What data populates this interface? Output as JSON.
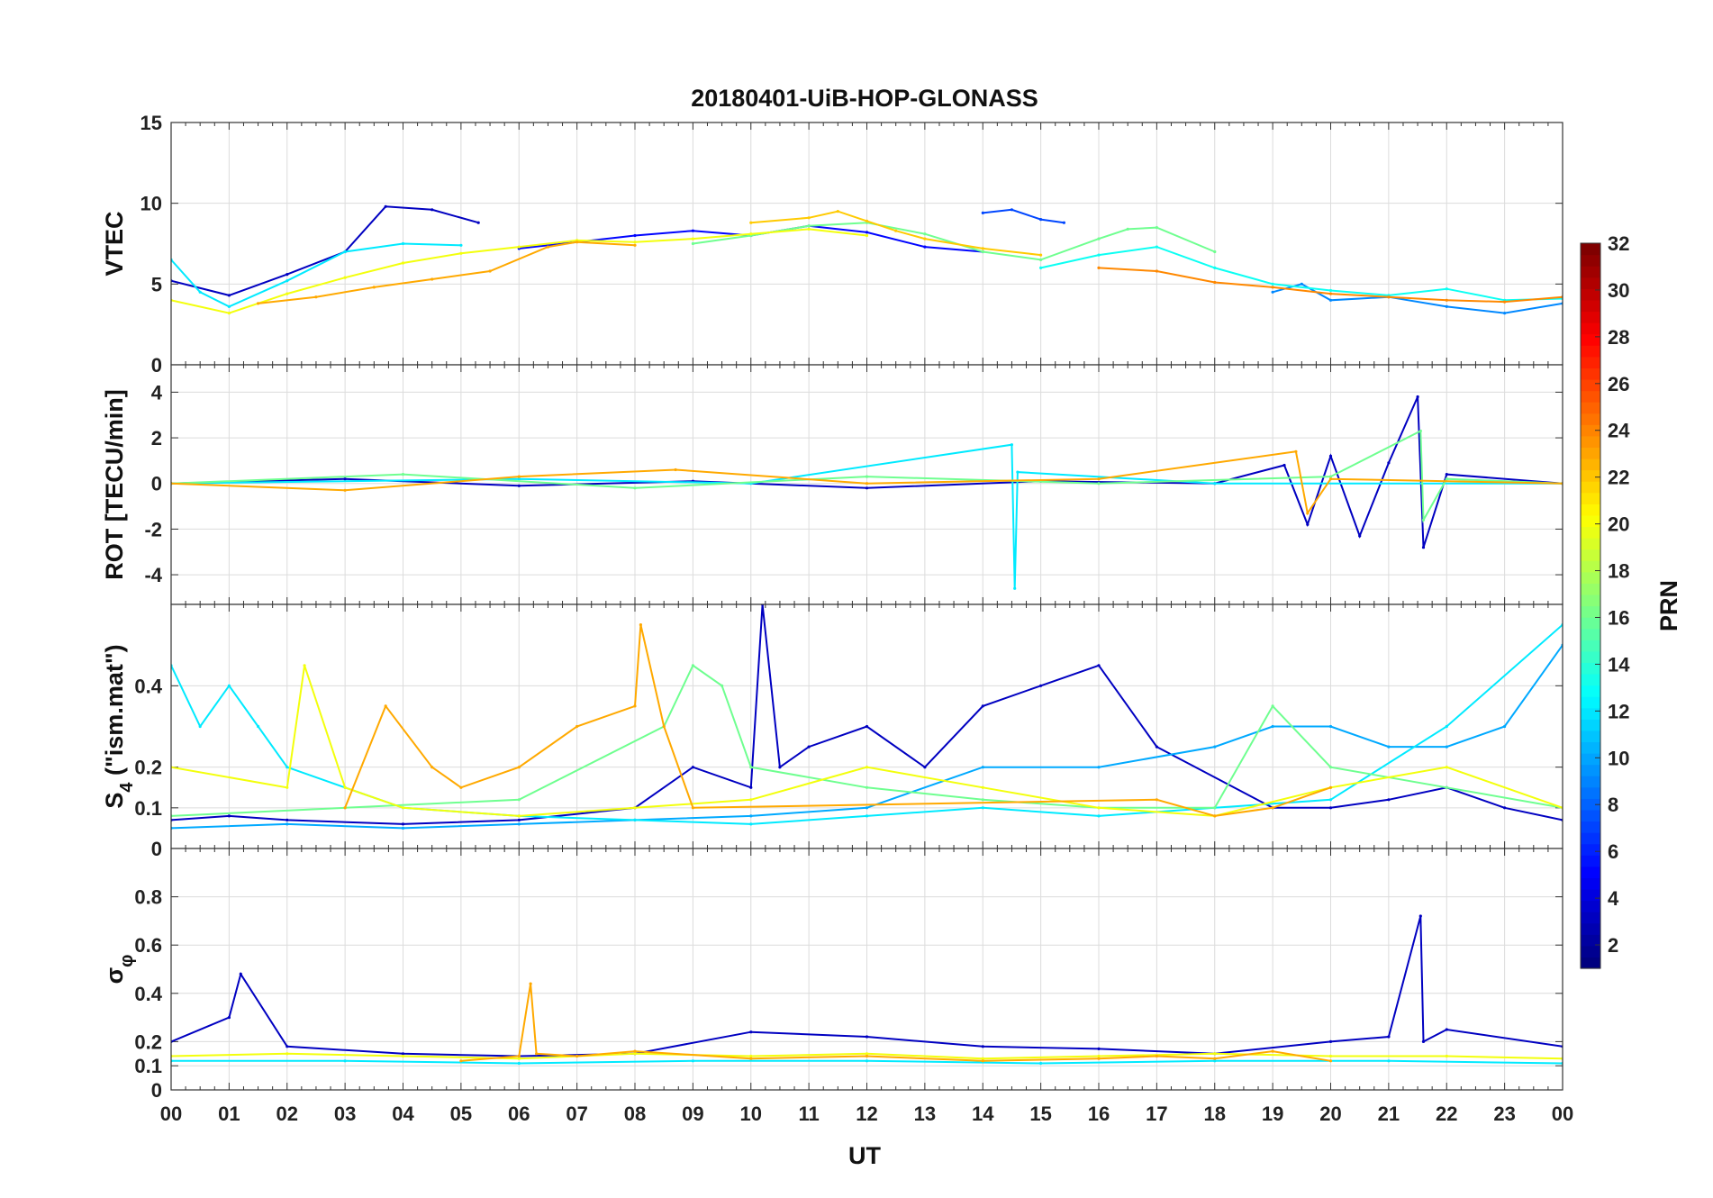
{
  "chart_data": {
    "type": "line",
    "title": "20180401-UiB-HOP-GLONASS",
    "xlabel": "UT",
    "x_ticks": [
      "00",
      "01",
      "02",
      "03",
      "04",
      "05",
      "06",
      "07",
      "08",
      "09",
      "10",
      "11",
      "12",
      "13",
      "14",
      "15",
      "16",
      "17",
      "18",
      "19",
      "20",
      "21",
      "22",
      "23",
      "00"
    ],
    "xlim_hours": [
      0,
      24
    ],
    "grid": true,
    "panels": [
      {
        "id": "vtec",
        "ylabel": "VTEC",
        "ylim": [
          0,
          15
        ],
        "yticks": [
          "0",
          "5",
          "10",
          "15"
        ],
        "ytick_values": [
          0,
          5,
          10,
          15
        ],
        "series": [
          {
            "name": "PRN 3",
            "hours": [
              0,
              1,
              2,
              3,
              3.7,
              4.5,
              5.3
            ],
            "values": [
              5.2,
              4.3,
              5.6,
              7.0,
              9.8,
              9.6,
              8.8
            ]
          },
          {
            "name": "PRN 5",
            "hours": [
              6,
              8,
              9,
              10,
              11,
              12,
              13,
              14
            ],
            "values": [
              7.2,
              8.0,
              8.3,
              8.0,
              8.6,
              8.2,
              7.3,
              7.0
            ]
          },
          {
            "name": "PRN 7",
            "hours": [
              14,
              14.5,
              15,
              15.4
            ],
            "values": [
              9.4,
              9.6,
              9.0,
              8.8
            ]
          },
          {
            "name": "PRN 9",
            "hours": [
              19,
              19.5,
              20,
              21,
              22,
              23,
              24
            ],
            "values": [
              4.5,
              5.0,
              4.0,
              4.2,
              3.6,
              3.2,
              3.8
            ]
          },
          {
            "name": "PRN 12",
            "hours": [
              0,
              0.5,
              1,
              2,
              3,
              4,
              5
            ],
            "values": [
              6.5,
              4.5,
              3.6,
              5.2,
              7.0,
              7.5,
              7.4
            ]
          },
          {
            "name": "PRN 13",
            "hours": [
              15,
              16,
              17,
              18,
              19,
              20,
              21,
              22,
              23,
              24
            ],
            "values": [
              6.0,
              6.8,
              7.3,
              6.0,
              5.0,
              4.6,
              4.3,
              4.7,
              4.0,
              4.1
            ]
          },
          {
            "name": "PRN 16",
            "hours": [
              9,
              10,
              11,
              12,
              13,
              14,
              15,
              16,
              16.5,
              17,
              18
            ],
            "values": [
              7.5,
              8.0,
              8.6,
              8.8,
              8.1,
              7.0,
              6.5,
              7.8,
              8.4,
              8.5,
              7.0
            ]
          },
          {
            "name": "PRN 20",
            "hours": [
              0,
              1,
              2,
              3,
              4,
              5,
              6,
              7,
              8,
              9,
              10,
              11,
              12
            ],
            "values": [
              4.0,
              3.2,
              4.4,
              5.4,
              6.3,
              6.9,
              7.3,
              7.7,
              7.6,
              7.8,
              8.1,
              8.4,
              8.0
            ]
          },
          {
            "name": "PRN 22",
            "hours": [
              10,
              11,
              11.5,
              12,
              12.5,
              13,
              14,
              15
            ],
            "values": [
              8.8,
              9.1,
              9.5,
              8.9,
              8.3,
              7.8,
              7.2,
              6.8
            ]
          },
          {
            "name": "PRN 23",
            "hours": [
              1.5,
              2.5,
              3.5,
              4.5,
              5.5,
              6.5,
              7,
              8
            ],
            "values": [
              3.8,
              4.2,
              4.8,
              5.3,
              5.8,
              7.3,
              7.6,
              7.4
            ]
          },
          {
            "name": "PRN 24",
            "hours": [
              16,
              17,
              18,
              19,
              20,
              21,
              22,
              23,
              24
            ],
            "values": [
              6.0,
              5.8,
              5.1,
              4.8,
              4.4,
              4.2,
              4.0,
              3.9,
              4.2
            ]
          }
        ]
      },
      {
        "id": "rot",
        "ylabel": "ROT [TECU/min]",
        "ylim": [
          -5.3,
          5.2
        ],
        "yticks": [
          "-4",
          "-2",
          "0",
          "2",
          "4"
        ],
        "ytick_values": [
          -4,
          -2,
          0,
          2,
          4
        ],
        "series": [
          {
            "name": "PRN 3",
            "hours": [
              0,
              3,
              6,
              9,
              12,
              15,
              18,
              19.2,
              19.6,
              20,
              20.5,
              21,
              21.5,
              21.6,
              22,
              24
            ],
            "values": [
              0,
              0.2,
              -0.1,
              0.1,
              -0.2,
              0.1,
              0,
              0.8,
              -1.8,
              1.2,
              -2.3,
              0.9,
              3.8,
              -2.8,
              0.4,
              0
            ]
          },
          {
            "name": "PRN 12",
            "hours": [
              0,
              6,
              10,
              14.5,
              14.55,
              14.6,
              18,
              24
            ],
            "values": [
              0,
              0.2,
              0,
              1.7,
              -4.6,
              0.5,
              0,
              0
            ]
          },
          {
            "name": "PRN 16",
            "hours": [
              0,
              4,
              8,
              12,
              16,
              20,
              21.55,
              21.6,
              22,
              24
            ],
            "values": [
              0,
              0.4,
              -0.2,
              0.3,
              0,
              0.3,
              2.3,
              -1.6,
              0.2,
              0
            ]
          },
          {
            "name": "PRN 23",
            "hours": [
              0,
              3,
              6,
              8.7,
              12,
              16,
              19.4,
              19.6,
              20,
              24
            ],
            "values": [
              0,
              -0.3,
              0.3,
              0.6,
              0,
              0.2,
              1.4,
              -1.3,
              0.2,
              0
            ]
          }
        ]
      },
      {
        "id": "s4",
        "ylabel": "S4 (\"ism.mat\")",
        "ylabel_base": "S",
        "ylabel_sub": "4",
        "ylabel_rest": " (\"ism.mat\")",
        "ylim": [
          0,
          0.6
        ],
        "yticks": [
          "0",
          "0.1",
          "0.2",
          "0.4"
        ],
        "ytick_values": [
          0,
          0.1,
          0.2,
          0.4
        ],
        "series": [
          {
            "name": "PRN 3",
            "hours": [
              0,
              1,
              2,
              4,
              6,
              8,
              9,
              10,
              10.2,
              10.5,
              11,
              12,
              13,
              14,
              15,
              16,
              17,
              19,
              20,
              21,
              22,
              23,
              24
            ],
            "values": [
              0.07,
              0.08,
              0.07,
              0.06,
              0.07,
              0.1,
              0.2,
              0.15,
              0.6,
              0.2,
              0.25,
              0.3,
              0.2,
              0.35,
              0.4,
              0.45,
              0.25,
              0.1,
              0.1,
              0.12,
              0.15,
              0.1,
              0.07
            ]
          },
          {
            "name": "PRN 10",
            "hours": [
              0,
              2,
              4,
              6,
              8,
              10,
              12,
              14,
              16,
              18,
              19,
              20,
              21,
              22,
              23,
              24
            ],
            "values": [
              0.05,
              0.06,
              0.05,
              0.06,
              0.07,
              0.08,
              0.1,
              0.2,
              0.2,
              0.25,
              0.3,
              0.3,
              0.25,
              0.25,
              0.3,
              0.5
            ]
          },
          {
            "name": "PRN 12",
            "hours": [
              0,
              0.5,
              1,
              1.5,
              2,
              3,
              4,
              6,
              8,
              10,
              12,
              14,
              16,
              18,
              20,
              22,
              24
            ],
            "values": [
              0.45,
              0.3,
              0.4,
              0.3,
              0.2,
              0.15,
              0.1,
              0.08,
              0.07,
              0.06,
              0.08,
              0.1,
              0.08,
              0.1,
              0.12,
              0.3,
              0.55
            ]
          },
          {
            "name": "PRN 16",
            "hours": [
              0,
              3,
              6,
              8.5,
              9,
              9.5,
              10,
              12,
              14,
              16,
              18,
              19,
              20,
              22,
              24
            ],
            "values": [
              0.08,
              0.1,
              0.12,
              0.3,
              0.45,
              0.4,
              0.2,
              0.15,
              0.12,
              0.1,
              0.1,
              0.35,
              0.2,
              0.15,
              0.1
            ]
          },
          {
            "name": "PRN 20",
            "hours": [
              0,
              2,
              2.3,
              3,
              4,
              6,
              8,
              10,
              12,
              14,
              16,
              18,
              20,
              22,
              24
            ],
            "values": [
              0.2,
              0.15,
              0.45,
              0.15,
              0.1,
              0.08,
              0.1,
              0.12,
              0.2,
              0.15,
              0.1,
              0.08,
              0.15,
              0.2,
              0.1
            ]
          },
          {
            "name": "PRN 23",
            "hours": [
              3,
              3.7,
              4.5,
              5,
              6,
              7,
              8,
              8.1,
              8.5,
              9,
              17,
              18,
              19,
              20
            ],
            "values": [
              0.1,
              0.35,
              0.2,
              0.15,
              0.2,
              0.3,
              0.35,
              0.55,
              0.3,
              0.1,
              0.12,
              0.08,
              0.1,
              0.15
            ]
          }
        ]
      },
      {
        "id": "sigma",
        "ylabel": "σφ",
        "ylabel_base": "σ",
        "ylabel_sub": "φ",
        "ylim": [
          0,
          1.0
        ],
        "yticks": [
          "0",
          "0.1",
          "0.2",
          "0.4",
          "0.6",
          "0.8"
        ],
        "ytick_values": [
          0,
          0.1,
          0.2,
          0.4,
          0.6,
          0.8
        ],
        "series": [
          {
            "name": "PRN 3",
            "hours": [
              0,
              1,
              1.2,
              2,
              4,
              6,
              8,
              10,
              12,
              14,
              16,
              18,
              20,
              21,
              21.55,
              21.6,
              22,
              24
            ],
            "values": [
              0.2,
              0.3,
              0.48,
              0.18,
              0.15,
              0.14,
              0.15,
              0.24,
              0.22,
              0.18,
              0.17,
              0.15,
              0.2,
              0.22,
              0.72,
              0.2,
              0.25,
              0.18
            ]
          },
          {
            "name": "PRN 12",
            "hours": [
              0,
              3,
              6,
              9,
              12,
              15,
              18,
              21,
              24
            ],
            "values": [
              0.12,
              0.12,
              0.11,
              0.12,
              0.12,
              0.11,
              0.12,
              0.12,
              0.11
            ]
          },
          {
            "name": "PRN 20",
            "hours": [
              0,
              2,
              4,
              6,
              8,
              10,
              12,
              14,
              16,
              18,
              20,
              22,
              24
            ],
            "values": [
              0.14,
              0.15,
              0.14,
              0.13,
              0.15,
              0.14,
              0.15,
              0.13,
              0.14,
              0.15,
              0.14,
              0.14,
              0.13
            ]
          },
          {
            "name": "PRN 23",
            "hours": [
              5,
              6,
              6.2,
              6.3,
              7,
              8,
              10,
              12,
              14,
              16,
              17,
              18,
              19,
              20
            ],
            "values": [
              0.12,
              0.14,
              0.44,
              0.15,
              0.14,
              0.16,
              0.13,
              0.14,
              0.12,
              0.13,
              0.14,
              0.13,
              0.16,
              0.12
            ]
          }
        ]
      }
    ],
    "colorbar": {
      "label": "PRN",
      "range": [
        1,
        32
      ],
      "ticks": [
        "2",
        "4",
        "6",
        "8",
        "10",
        "12",
        "14",
        "16",
        "18",
        "20",
        "22",
        "24",
        "26",
        "28",
        "30",
        "32"
      ],
      "tick_values": [
        2,
        4,
        6,
        8,
        10,
        12,
        14,
        16,
        18,
        20,
        22,
        24,
        26,
        28,
        30,
        32
      ],
      "colormap": "jet"
    }
  }
}
